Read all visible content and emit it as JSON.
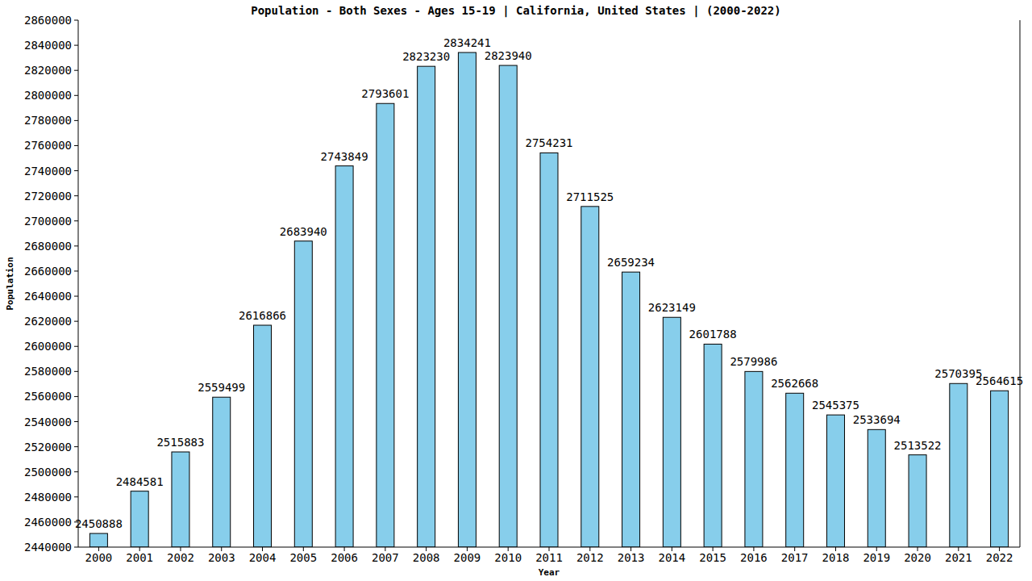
{
  "chart_data": {
    "type": "bar",
    "title": "Population - Both Sexes - Ages 15-19 | California, United States |  (2000-2022)",
    "x_label": "Year",
    "y_label": "Population",
    "categories": [
      "2000",
      "2001",
      "2002",
      "2003",
      "2004",
      "2005",
      "2006",
      "2007",
      "2008",
      "2009",
      "2010",
      "2011",
      "2012",
      "2013",
      "2014",
      "2015",
      "2016",
      "2017",
      "2018",
      "2019",
      "2020",
      "2021",
      "2022"
    ],
    "values": [
      2450888,
      2484581,
      2515883,
      2559499,
      2616866,
      2683940,
      2743849,
      2793601,
      2823230,
      2834241,
      2823940,
      2754231,
      2711525,
      2659234,
      2623149,
      2601788,
      2579986,
      2562668,
      2545375,
      2533694,
      2513522,
      2570395,
      2564615
    ],
    "color": "#87ceeb",
    "ylim": [
      2440000,
      2860000
    ],
    "yticks": [
      2440000,
      2460000,
      2480000,
      2500000,
      2520000,
      2540000,
      2560000,
      2580000,
      2600000,
      2620000,
      2640000,
      2660000,
      2680000,
      2700000,
      2720000,
      2740000,
      2760000,
      2780000,
      2800000,
      2820000,
      2840000,
      2860000
    ],
    "grid": false,
    "data_labels": true
  }
}
